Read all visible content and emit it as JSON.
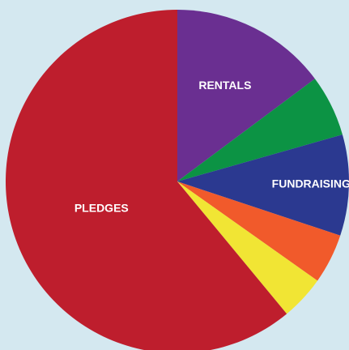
{
  "background_color": "#d4e8f0",
  "chart_data": {
    "type": "pie",
    "title": "",
    "start_angle_deg": 0,
    "direction": "clockwise",
    "slices": [
      {
        "label": "RENTALS",
        "value": 14.8,
        "color": "#6a2f91"
      },
      {
        "label": "",
        "value": 5.8,
        "color": "#0c9344"
      },
      {
        "label": "FUNDRAISING",
        "value": 9.5,
        "color": "#2b3990"
      },
      {
        "label": "",
        "value": 4.7,
        "color": "#f15a2b"
      },
      {
        "label": "",
        "value": 4.2,
        "color": "#f1e534"
      },
      {
        "label": "PLEDGES",
        "value": 61.0,
        "color": "#be1e2d"
      }
    ]
  }
}
